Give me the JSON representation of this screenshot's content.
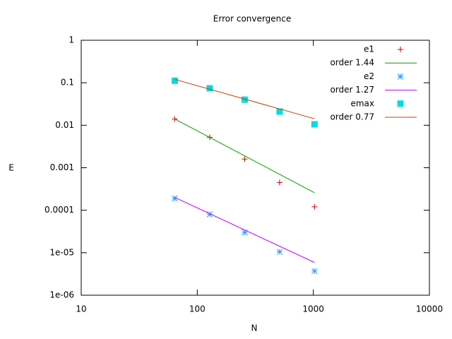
{
  "chart_data": {
    "type": "line",
    "title": "Error convergence",
    "x_label": "N",
    "y_label": "E",
    "xscale": "log",
    "yscale": "log",
    "xlim": [
      10,
      10000
    ],
    "xticks": [
      10,
      100,
      1000,
      10000
    ],
    "ylim": [
      1e-06,
      1
    ],
    "yticks": [
      {
        "value": 1e-06,
        "label": "1e-06"
      },
      {
        "value": 1e-05,
        "label": "1e-05"
      },
      0.0001,
      0.001,
      0.01,
      0.1,
      1
    ],
    "legend": "top-right",
    "series": [
      {
        "name": "e1",
        "style": "points",
        "marker": "plus",
        "color": "#cc0000",
        "x": [
          64,
          128,
          256,
          512,
          1024
        ],
        "values": [
          0.014,
          0.0052,
          0.0016,
          0.00045,
          0.00012
        ]
      },
      {
        "name": "order 1.44",
        "style": "line",
        "color": "#00a000",
        "x": [
          64,
          1024
        ],
        "values": [
          0.014,
          0.000258
        ]
      },
      {
        "name": "e2",
        "style": "points",
        "marker": "star",
        "color": "#3399ff",
        "x": [
          64,
          128,
          256,
          512,
          1024
        ],
        "values": [
          0.00019,
          8e-05,
          3e-05,
          1.05e-05,
          3.7e-06
        ]
      },
      {
        "name": "order 1.27",
        "style": "line",
        "color": "#c000ff",
        "x": [
          64,
          1024
        ],
        "values": [
          0.0002,
          5.9e-06
        ]
      },
      {
        "name": "emax",
        "style": "points",
        "marker": "square",
        "color": "#00dddd",
        "x": [
          64,
          128,
          256,
          512,
          1024
        ],
        "values": [
          0.112,
          0.074,
          0.04,
          0.021,
          0.0105
        ]
      },
      {
        "name": "order 0.77",
        "style": "line",
        "color": "#c04000",
        "x": [
          64,
          1024
        ],
        "values": [
          0.12,
          0.0142
        ]
      }
    ]
  }
}
